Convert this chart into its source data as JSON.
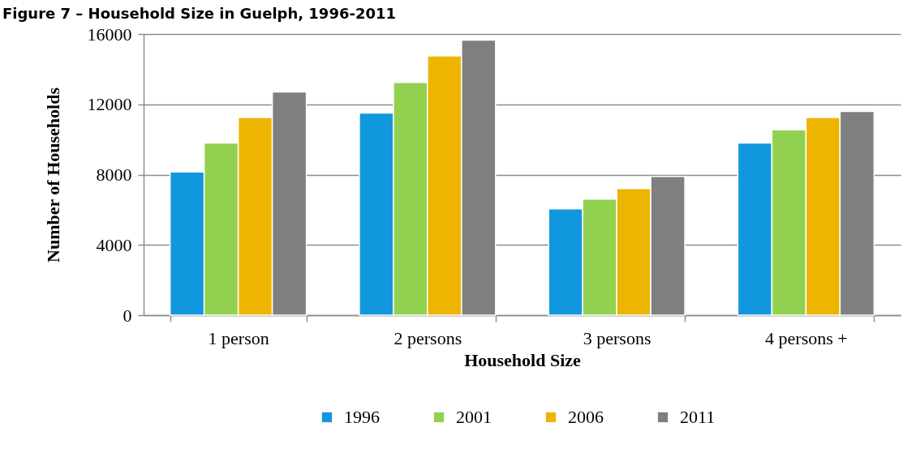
{
  "chart_data": {
    "type": "bar",
    "title": "Figure 7 – Household Size in Guelph, 1996-2011",
    "xlabel": "Household Size",
    "ylabel": "Number of Households",
    "categories": [
      "1 person",
      "2 persons",
      "3 persons",
      "4 persons +"
    ],
    "series": [
      {
        "name": "1996",
        "color": "#1197de",
        "values": [
          8150,
          11500,
          6050,
          9800
        ]
      },
      {
        "name": "2001",
        "color": "#92d150",
        "values": [
          9800,
          13250,
          6600,
          10550
        ]
      },
      {
        "name": "2006",
        "color": "#edb500",
        "values": [
          11250,
          14750,
          7200,
          11250
        ]
      },
      {
        "name": "2011",
        "color": "#7f7f7f",
        "values": [
          12700,
          15650,
          7900,
          11600
        ]
      }
    ],
    "ylim": [
      0,
      16000
    ],
    "yticks": [
      0,
      4000,
      8000,
      12000,
      16000
    ],
    "grid": "y",
    "legend": "bottom"
  }
}
